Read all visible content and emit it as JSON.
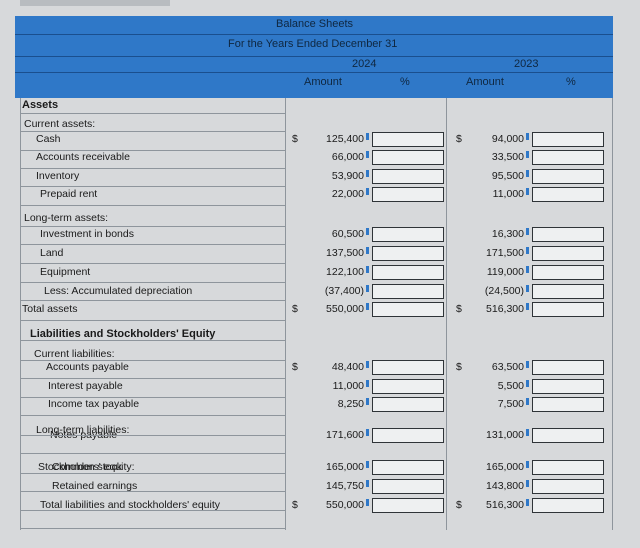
{
  "header": {
    "title": "Balance Sheets",
    "subtitle": "For the Years Ended December 31",
    "year_a": "2024",
    "year_b": "2023",
    "col_amount": "Amount",
    "col_percent": "%"
  },
  "sections": {
    "assets": "Assets",
    "current_assets": "Current assets:",
    "long_term_assets": "Long-term assets:",
    "total_assets": "Total assets",
    "liab_equity": "Liabilities and Stockholders' Equity",
    "current_liabilities": "Current liabilities:",
    "long_term_liabilities": "Long-term liabilities:",
    "stockholders_equity": "Stockholders' equity:",
    "total_liab": "Total liabilities and stockholders' equity"
  },
  "rows": [
    {
      "label": "Cash",
      "a": "125,400",
      "b": "94,000",
      "dollar_a": "$",
      "dollar_b": "$"
    },
    {
      "label": "Accounts receivable",
      "a": "66,000",
      "b": "33,500",
      "dollar_a": "",
      "dollar_b": ""
    },
    {
      "label": "Inventory",
      "a": "53,900",
      "b": "95,500",
      "dollar_a": "",
      "dollar_b": ""
    },
    {
      "label": "Prepaid rent",
      "a": "22,000",
      "b": "11,000",
      "dollar_a": "",
      "dollar_b": ""
    },
    {
      "label": "Investment in bonds",
      "a": "60,500",
      "b": "16,300",
      "dollar_a": "",
      "dollar_b": ""
    },
    {
      "label": "Land",
      "a": "137,500",
      "b": "171,500",
      "dollar_a": "",
      "dollar_b": ""
    },
    {
      "label": "Equipment",
      "a": "122,100",
      "b": "119,000",
      "dollar_a": "",
      "dollar_b": ""
    },
    {
      "label": "Less: Accumulated depreciation",
      "a": "(37,400)",
      "b": "(24,500)",
      "dollar_a": "",
      "dollar_b": ""
    },
    {
      "label": "Total assets",
      "a": "550,000",
      "b": "516,300",
      "dollar_a": "$",
      "dollar_b": "$"
    },
    {
      "label": "Accounts payable",
      "a": "48,400",
      "b": "63,500",
      "dollar_a": "$",
      "dollar_b": "$"
    },
    {
      "label": "Interest payable",
      "a": "11,000",
      "b": "5,500",
      "dollar_a": "",
      "dollar_b": ""
    },
    {
      "label": "Income tax payable",
      "a": "8,250",
      "b": "7,500",
      "dollar_a": "",
      "dollar_b": ""
    },
    {
      "label": "Notes payable",
      "a": "171,600",
      "b": "131,000",
      "dollar_a": "",
      "dollar_b": ""
    },
    {
      "label": "Common stock",
      "a": "165,000",
      "b": "165,000",
      "dollar_a": "",
      "dollar_b": ""
    },
    {
      "label": "Retained earnings",
      "a": "145,750",
      "b": "143,800",
      "dollar_a": "",
      "dollar_b": ""
    },
    {
      "label": "Total liabilities and stockholders' equity",
      "a": "550,000",
      "b": "516,300",
      "dollar_a": "$",
      "dollar_b": "$"
    }
  ]
}
